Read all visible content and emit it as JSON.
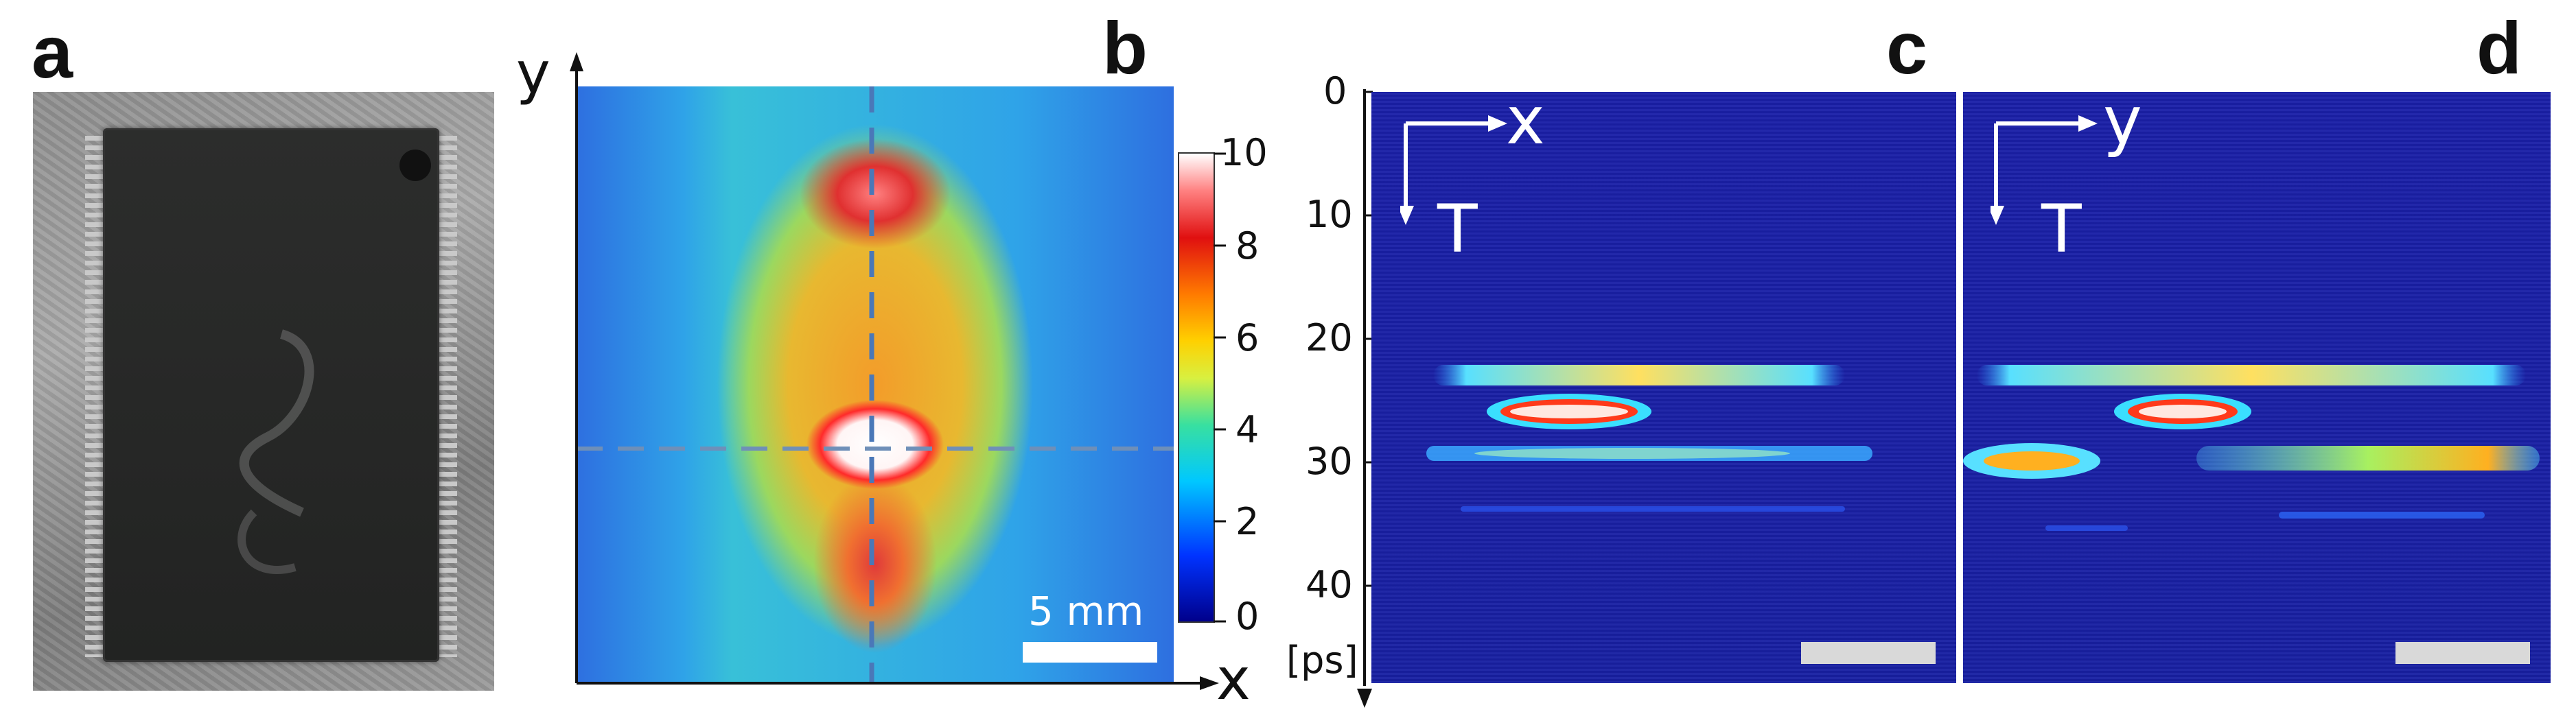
{
  "panel_labels": {
    "a": "a",
    "b": "b",
    "c": "c",
    "d": "d"
  },
  "panel_b": {
    "y_axis_label": "y",
    "x_axis_label": "x",
    "scale_bar_label": "5 mm",
    "colorbar_ticks": [
      "10",
      "8",
      "6",
      "4",
      "2",
      "0"
    ]
  },
  "panel_c": {
    "time_axis_ticks": [
      "0",
      "10",
      "20",
      "30",
      "40"
    ],
    "time_unit": "[ps]",
    "inset_horizontal": "x",
    "inset_vertical": "T"
  },
  "panel_d": {
    "inset_horizontal": "y",
    "inset_vertical": "T"
  },
  "colors": {
    "chip": "#262726",
    "tof_background": "#1a1fa8",
    "dashed_line": "#4a78b8",
    "scale_bar_grey": "#d9d9d9"
  }
}
